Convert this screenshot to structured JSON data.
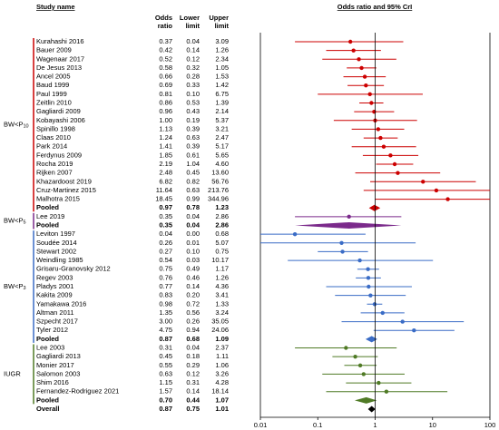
{
  "chart_data": {
    "type": "forest",
    "column_headers": {
      "study": "Study name",
      "odds": [
        "Odds",
        "ratio"
      ],
      "lower": [
        "Lower",
        "limit"
      ],
      "upper": [
        "Upper",
        "limit"
      ]
    },
    "plot_title": "Odds ratio and 95% CrI",
    "log_scale": true,
    "xlim": [
      0.01,
      100
    ],
    "xticks": [
      0.01,
      0.1,
      1,
      10,
      100
    ],
    "groups": [
      {
        "label": {
          "text": "BW<P",
          "sub": "10"
        },
        "color": "#cc0000",
        "studies": [
          {
            "name": "Kurahashi 2016",
            "values": [
              0.37,
              0.04,
              3.09
            ],
            "value_labels": [
              "0.37",
              "0.04",
              "3.09"
            ]
          },
          {
            "name": "Bauer 2009",
            "values": [
              0.42,
              0.14,
              1.26
            ],
            "value_labels": [
              "0.42",
              "0.14",
              "1.26"
            ]
          },
          {
            "name": "Wagenaar 2017",
            "values": [
              0.52,
              0.12,
              2.34
            ],
            "value_labels": [
              "0.52",
              "0.12",
              "2.34"
            ]
          },
          {
            "name": "De Jesus 2013",
            "values": [
              0.58,
              0.32,
              1.05
            ],
            "value_labels": [
              "0.58",
              "0.32",
              "1.05"
            ]
          },
          {
            "name": "Ancel 2005",
            "values": [
              0.66,
              0.28,
              1.53
            ],
            "value_labels": [
              "0.66",
              "0.28",
              "1.53"
            ]
          },
          {
            "name": "Baud 1999",
            "values": [
              0.69,
              0.33,
              1.42
            ],
            "value_labels": [
              "0.69",
              "0.33",
              "1.42"
            ]
          },
          {
            "name": "Paul 1999",
            "values": [
              0.81,
              0.1,
              6.75
            ],
            "value_labels": [
              "0.81",
              "0.10",
              "6.75"
            ]
          },
          {
            "name": "Zeitlin 2010",
            "values": [
              0.86,
              0.53,
              1.39
            ],
            "value_labels": [
              "0.86",
              "0.53",
              "1.39"
            ]
          },
          {
            "name": "Gagliardi 2009",
            "values": [
              0.96,
              0.43,
              2.14
            ],
            "value_labels": [
              "0.96",
              "0.43",
              "2.14"
            ]
          },
          {
            "name": "Kobayashi 2006",
            "values": [
              1,
              0.19,
              5.37
            ],
            "value_labels": [
              "1.00",
              "0.19",
              "5.37"
            ]
          },
          {
            "name": "Spinillo 1998",
            "values": [
              1.13,
              0.39,
              3.21
            ],
            "value_labels": [
              "1.13",
              "0.39",
              "3.21"
            ]
          },
          {
            "name": "Claas 2010",
            "values": [
              1.24,
              0.63,
              2.47
            ],
            "value_labels": [
              "1.24",
              "0.63",
              "2.47"
            ]
          },
          {
            "name": "Park 2014",
            "values": [
              1.41,
              0.39,
              5.17
            ],
            "value_labels": [
              "1.41",
              "0.39",
              "5.17"
            ]
          },
          {
            "name": "Ferdynus 2009",
            "values": [
              1.85,
              0.61,
              5.65
            ],
            "value_labels": [
              "1.85",
              "0.61",
              "5.65"
            ]
          },
          {
            "name": "Rocha 2019",
            "values": [
              2.19,
              1.04,
              4.6
            ],
            "value_labels": [
              "2.19",
              "1.04",
              "4.60"
            ]
          },
          {
            "name": "Rijken 2007",
            "values": [
              2.48,
              0.45,
              13.6
            ],
            "value_labels": [
              "2.48",
              "0.45",
              "13.60"
            ]
          },
          {
            "name": "Khazardoost 2019",
            "values": [
              6.82,
              0.82,
              56.76
            ],
            "value_labels": [
              "6.82",
              "0.82",
              "56.76"
            ]
          },
          {
            "name": "Cruz-Martinez 2015",
            "values": [
              11.64,
              0.63,
              213.76
            ],
            "value_labels": [
              "11.64",
              "0.63",
              "213.76"
            ]
          },
          {
            "name": "Malhotra 2015",
            "values": [
              18.45,
              0.99,
              344.96
            ],
            "value_labels": [
              "18.45",
              "0.99",
              "344.96"
            ]
          }
        ],
        "pooled": {
          "name": "Pooled",
          "values": [
            0.97,
            0.78,
            1.23
          ],
          "value_labels": [
            "0.97",
            "0.78",
            "1.23"
          ]
        }
      },
      {
        "label": {
          "text": "BW<P",
          "sub": "5"
        },
        "color": "#7b2a8b",
        "studies": [
          {
            "name": "Lee 2019",
            "values": [
              0.35,
              0.04,
              2.86
            ],
            "value_labels": [
              "0.35",
              "0.04",
              "2.86"
            ]
          }
        ],
        "pooled": {
          "name": "Pooled",
          "values": [
            0.35,
            0.04,
            2.86
          ],
          "value_labels": [
            "0.35",
            "0.04",
            "2.86"
          ]
        }
      },
      {
        "label": {
          "text": "BW<P",
          "sub": "3"
        },
        "color": "#3a6cc6",
        "studies": [
          {
            "name": "Leviton 1997",
            "values": [
              0.04,
              0,
              0.68
            ],
            "value_labels": [
              "0.04",
              "0.00",
              "0.68"
            ]
          },
          {
            "name": "Soudée 2014",
            "values": [
              0.26,
              0.01,
              5.07
            ],
            "value_labels": [
              "0.26",
              "0.01",
              "5.07"
            ]
          },
          {
            "name": "Stewart 2002",
            "values": [
              0.27,
              0.1,
              0.75
            ],
            "value_labels": [
              "0.27",
              "0.10",
              "0.75"
            ]
          },
          {
            "name": "Weindling 1985",
            "values": [
              0.54,
              0.03,
              10.17
            ],
            "value_labels": [
              "0.54",
              "0.03",
              "10.17"
            ]
          },
          {
            "name": "Grisaru-Granovsky 2012",
            "values": [
              0.75,
              0.49,
              1.17
            ],
            "value_labels": [
              "0.75",
              "0.49",
              "1.17"
            ]
          },
          {
            "name": "Regev 2003",
            "values": [
              0.76,
              0.46,
              1.26
            ],
            "value_labels": [
              "0.76",
              "0.46",
              "1.26"
            ]
          },
          {
            "name": "Pladys 2001",
            "values": [
              0.77,
              0.14,
              4.36
            ],
            "value_labels": [
              "0.77",
              "0.14",
              "4.36"
            ]
          },
          {
            "name": "Kakita 2009",
            "values": [
              0.83,
              0.2,
              3.41
            ],
            "value_labels": [
              "0.83",
              "0.20",
              "3.41"
            ]
          },
          {
            "name": "Yamakawa 2016",
            "values": [
              0.98,
              0.72,
              1.33
            ],
            "value_labels": [
              "0.98",
              "0.72",
              "1.33"
            ]
          },
          {
            "name": "Altman 2011",
            "values": [
              1.35,
              0.56,
              3.24
            ],
            "value_labels": [
              "1.35",
              "0.56",
              "3.24"
            ]
          },
          {
            "name": "Szpecht 2017",
            "values": [
              3,
              0.26,
              35.05
            ],
            "value_labels": [
              "3.00",
              "0.26",
              "35.05"
            ]
          },
          {
            "name": "Tyler 2012",
            "values": [
              4.75,
              0.94,
              24.06
            ],
            "value_labels": [
              "4.75",
              "0.94",
              "24.06"
            ]
          }
        ],
        "pooled": {
          "name": "Pooled",
          "values": [
            0.87,
            0.68,
            1.09
          ],
          "value_labels": [
            "0.87",
            "0.68",
            "1.09"
          ]
        }
      },
      {
        "label": {
          "text": "IUGR"
        },
        "color": "#4f7a25",
        "studies": [
          {
            "name": "Lee 2003",
            "values": [
              0.31,
              0.04,
              2.37
            ],
            "value_labels": [
              "0.31",
              "0.04",
              "2.37"
            ]
          },
          {
            "name": "Gagliardi 2013",
            "values": [
              0.45,
              0.18,
              1.11
            ],
            "value_labels": [
              "0.45",
              "0.18",
              "1.11"
            ]
          },
          {
            "name": "Monier 2017",
            "values": [
              0.55,
              0.29,
              1.06
            ],
            "value_labels": [
              "0.55",
              "0.29",
              "1.06"
            ]
          },
          {
            "name": "Salomon 2003",
            "values": [
              0.63,
              0.12,
              3.26
            ],
            "value_labels": [
              "0.63",
              "0.12",
              "3.26"
            ]
          },
          {
            "name": "Shim 2016",
            "values": [
              1.15,
              0.31,
              4.28
            ],
            "value_labels": [
              "1.15",
              "0.31",
              "4.28"
            ]
          },
          {
            "name": "Fernandez-Rodriguez 2021",
            "values": [
              1.57,
              0.14,
              18.14
            ],
            "value_labels": [
              "1.57",
              "0.14",
              "18.14"
            ]
          }
        ],
        "pooled": {
          "name": "Pooled",
          "values": [
            0.7,
            0.44,
            1.07
          ],
          "value_labels": [
            "0.70",
            "0.44",
            "1.07"
          ]
        }
      }
    ],
    "overall": {
      "name": "Overall",
      "color": "#000000",
      "values": [
        0.87,
        0.75,
        1.01
      ],
      "value_labels": [
        "0.87",
        "0.75",
        "1.01"
      ]
    }
  }
}
